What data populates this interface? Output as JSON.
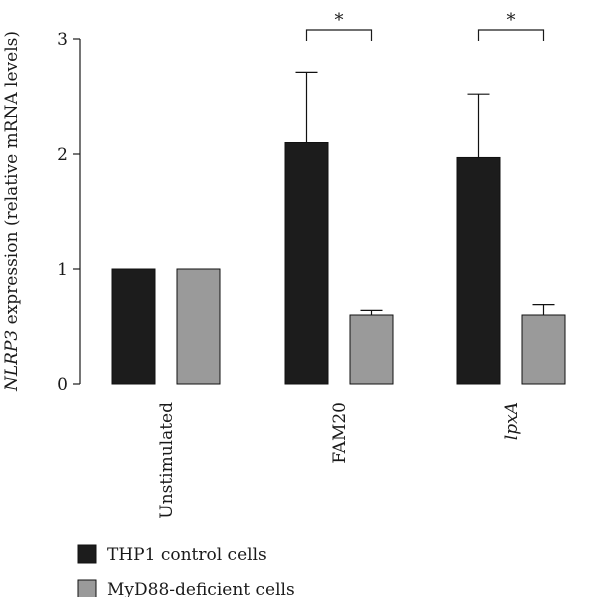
{
  "chart_data": {
    "type": "bar",
    "title": "",
    "ylabel_italic": "NLRP3",
    "ylabel_rest": " expression (relative mRNA levels)",
    "xlabel": "",
    "ylim": [
      0,
      3
    ],
    "yticks": [
      "0",
      "1",
      "2",
      "3"
    ],
    "categories": [
      {
        "label": "Unstimulated",
        "italic": false
      },
      {
        "label": "FAM20",
        "italic": false
      },
      {
        "label": "lpxA",
        "italic": true
      }
    ],
    "series": [
      {
        "name": "THP1 control cells",
        "color": "#1c1c1c",
        "values": [
          1.0,
          2.1,
          1.97
        ],
        "errors": [
          0,
          0.61,
          0.55
        ]
      },
      {
        "name": "MyD88-deficient cells",
        "color": "#9a9a9a",
        "values": [
          1.0,
          0.6,
          0.6
        ],
        "errors": [
          0,
          0.04,
          0.09
        ]
      }
    ],
    "significance": [
      {
        "category_index": 1,
        "label": "*"
      },
      {
        "category_index": 2,
        "label": "*"
      }
    ],
    "legend_position": "bottom-left",
    "grid": false
  }
}
